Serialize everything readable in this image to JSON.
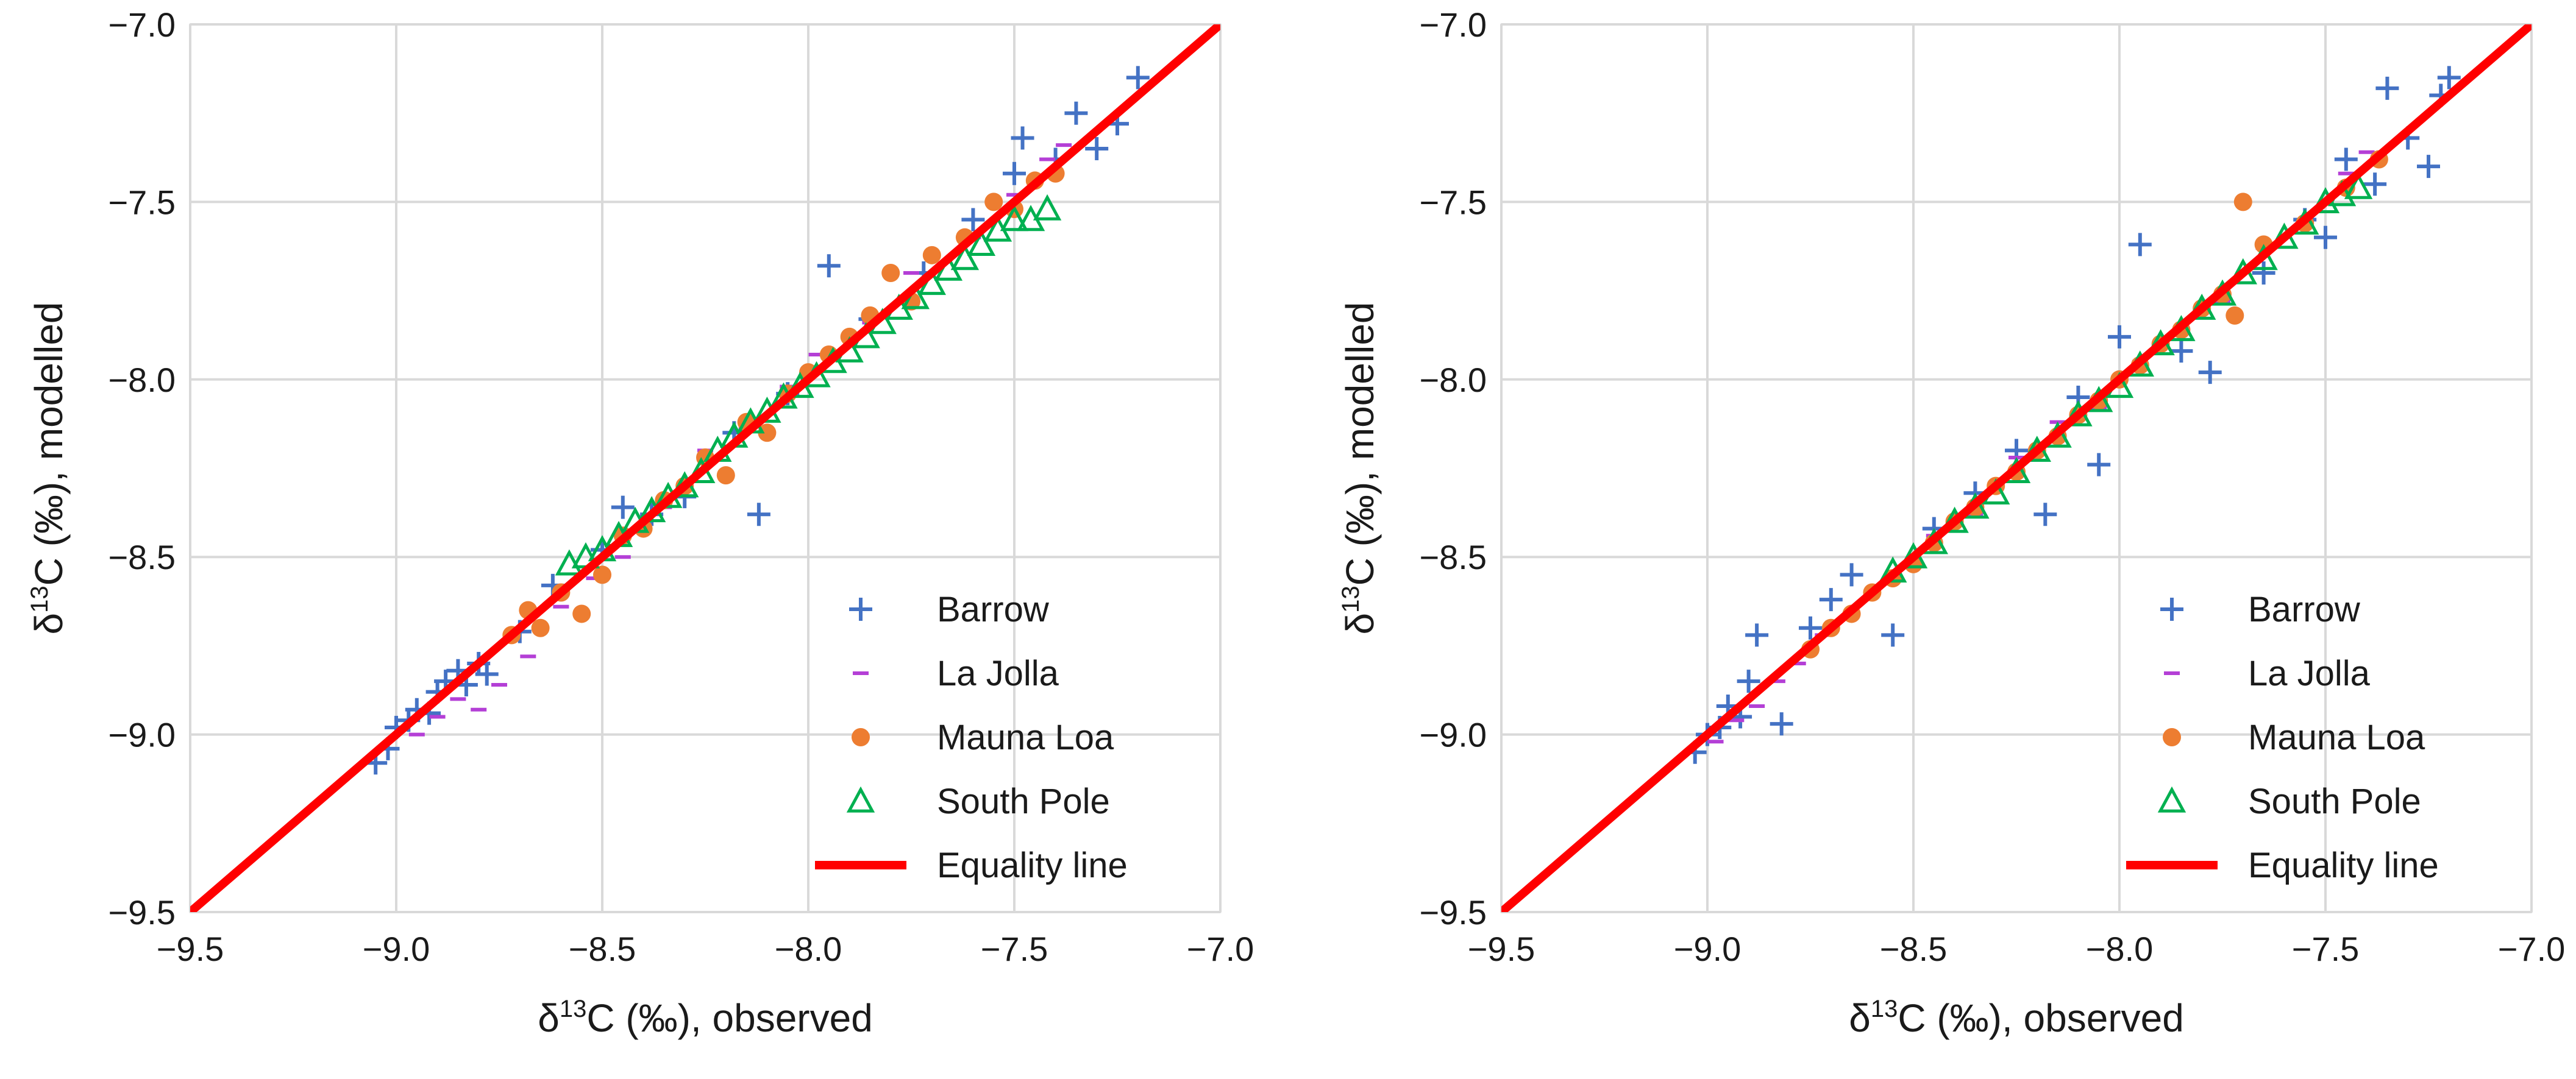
{
  "chart_data": [
    {
      "type": "scatter",
      "title": "",
      "xlabel": {
        "delta": "δ",
        "sup": "13",
        "rest": "C (‰), observed"
      },
      "ylabel": {
        "delta": "δ",
        "sup": "13",
        "rest": "C (‰), modelled"
      },
      "xlim": [
        -9.5,
        -7.0
      ],
      "ylim": [
        -9.5,
        -7.0
      ],
      "xticks": [
        "−9.5",
        "−9.0",
        "−8.5",
        "−8.0",
        "−7.5",
        "−7.0"
      ],
      "yticks": [
        "−9.5",
        "−9.0",
        "−8.5",
        "−8.0",
        "−7.5",
        "−7.0"
      ],
      "grid": true,
      "legend_position": "bottom-right",
      "series": [
        {
          "name": "Barrow",
          "marker": "plus",
          "color": "#4472C4",
          "x": [
            -9.05,
            -9.02,
            -9.0,
            -8.97,
            -8.95,
            -8.92,
            -8.9,
            -8.88,
            -8.85,
            -8.83,
            -8.8,
            -8.78,
            -8.7,
            -8.62,
            -8.5,
            -8.45,
            -8.38,
            -8.3,
            -8.18,
            -8.12,
            -8.05,
            -7.95,
            -7.85,
            -7.72,
            -7.6,
            -7.5,
            -7.48,
            -7.4,
            -7.35,
            -7.3,
            -7.25,
            -7.2
          ],
          "y": [
            -9.08,
            -9.04,
            -8.98,
            -8.96,
            -8.93,
            -8.94,
            -8.88,
            -8.85,
            -8.82,
            -8.86,
            -8.8,
            -8.83,
            -8.71,
            -8.58,
            -8.48,
            -8.36,
            -8.38,
            -8.33,
            -8.15,
            -8.38,
            -8.04,
            -7.68,
            -7.83,
            -7.7,
            -7.55,
            -7.42,
            -7.32,
            -7.38,
            -7.25,
            -7.35,
            -7.28,
            -7.15
          ]
        },
        {
          "name": "La Jolla",
          "marker": "dash",
          "color": "#B43FD6",
          "x": [
            -8.95,
            -8.9,
            -8.85,
            -8.8,
            -8.75,
            -8.68,
            -8.6,
            -8.52,
            -8.45,
            -8.35,
            -8.25,
            -8.15,
            -8.05,
            -7.98,
            -7.85,
            -7.75,
            -7.6,
            -7.5,
            -7.42,
            -7.38
          ],
          "y": [
            -9.0,
            -8.95,
            -8.9,
            -8.93,
            -8.86,
            -8.78,
            -8.64,
            -8.56,
            -8.5,
            -8.36,
            -8.2,
            -8.14,
            -8.02,
            -7.93,
            -7.84,
            -7.7,
            -7.6,
            -7.48,
            -7.38,
            -7.34
          ]
        },
        {
          "name": "Mauna Loa",
          "marker": "circle",
          "color": "#ED7D31",
          "x": [
            -8.72,
            -8.68,
            -8.65,
            -8.6,
            -8.55,
            -8.5,
            -8.45,
            -8.4,
            -8.35,
            -8.3,
            -8.25,
            -8.2,
            -8.15,
            -8.1,
            -8.05,
            -8.0,
            -7.95,
            -7.9,
            -7.85,
            -7.8,
            -7.75,
            -7.7,
            -7.62,
            -7.55,
            -7.5,
            -7.45,
            -7.4
          ],
          "y": [
            -8.72,
            -8.65,
            -8.7,
            -8.6,
            -8.66,
            -8.55,
            -8.44,
            -8.42,
            -8.34,
            -8.3,
            -8.22,
            -8.27,
            -8.12,
            -8.15,
            -8.04,
            -7.98,
            -7.93,
            -7.88,
            -7.82,
            -7.7,
            -7.78,
            -7.65,
            -7.6,
            -7.5,
            -7.52,
            -7.44,
            -7.42
          ]
        },
        {
          "name": "South Pole",
          "marker": "triangle",
          "color": "#00B050",
          "x": [
            -8.58,
            -8.54,
            -8.5,
            -8.46,
            -8.42,
            -8.38,
            -8.34,
            -8.3,
            -8.26,
            -8.22,
            -8.18,
            -8.14,
            -8.1,
            -8.06,
            -8.02,
            -7.98,
            -7.94,
            -7.9,
            -7.86,
            -7.82,
            -7.78,
            -7.74,
            -7.7,
            -7.66,
            -7.62,
            -7.58,
            -7.54,
            -7.5,
            -7.46,
            -7.42
          ],
          "y": [
            -8.52,
            -8.5,
            -8.48,
            -8.44,
            -8.4,
            -8.37,
            -8.33,
            -8.3,
            -8.26,
            -8.2,
            -8.16,
            -8.12,
            -8.09,
            -8.05,
            -8.02,
            -7.99,
            -7.95,
            -7.92,
            -7.88,
            -7.84,
            -7.8,
            -7.77,
            -7.73,
            -7.69,
            -7.66,
            -7.62,
            -7.58,
            -7.55,
            -7.55,
            -7.52
          ]
        },
        {
          "name": "Equality line",
          "marker": "line",
          "color": "#FF0000",
          "x": [
            -9.5,
            -7.0
          ],
          "y": [
            -9.5,
            -7.0
          ]
        }
      ]
    },
    {
      "type": "scatter",
      "title": "",
      "xlabel": {
        "delta": "δ",
        "sup": "13",
        "rest": "C (‰), observed"
      },
      "ylabel": {
        "delta": "δ",
        "sup": "13",
        "rest": "C (‰), modelled"
      },
      "xlim": [
        -9.5,
        -7.0
      ],
      "ylim": [
        -9.5,
        -7.0
      ],
      "xticks": [
        "−9.5",
        "−9.0",
        "−8.5",
        "−8.0",
        "−7.5",
        "−7.0"
      ],
      "yticks": [
        "−9.5",
        "−9.0",
        "−8.5",
        "−8.0",
        "−7.5",
        "−7.0"
      ],
      "grid": true,
      "legend_position": "bottom-right",
      "series": [
        {
          "name": "Barrow",
          "marker": "plus",
          "color": "#4472C4",
          "x": [
            -9.03,
            -9.0,
            -8.97,
            -8.95,
            -8.92,
            -8.9,
            -8.88,
            -8.82,
            -8.75,
            -8.7,
            -8.65,
            -8.55,
            -8.45,
            -8.35,
            -8.25,
            -8.18,
            -8.1,
            -8.05,
            -8.0,
            -7.95,
            -7.85,
            -7.78,
            -7.65,
            -7.55,
            -7.5,
            -7.45,
            -7.38,
            -7.3,
            -7.25,
            -7.22,
            -7.2,
            -7.35
          ],
          "y": [
            -9.05,
            -9.0,
            -8.98,
            -8.92,
            -8.95,
            -8.85,
            -8.72,
            -8.97,
            -8.7,
            -8.62,
            -8.55,
            -8.72,
            -8.42,
            -8.32,
            -8.2,
            -8.38,
            -8.05,
            -8.24,
            -7.88,
            -7.62,
            -7.92,
            -7.98,
            -7.7,
            -7.55,
            -7.6,
            -7.38,
            -7.45,
            -7.32,
            -7.4,
            -7.2,
            -7.15,
            -7.18
          ]
        },
        {
          "name": "La Jolla",
          "marker": "dash",
          "color": "#B43FD6",
          "x": [
            -8.98,
            -8.93,
            -8.88,
            -8.83,
            -8.78,
            -8.72,
            -8.65,
            -8.55,
            -8.45,
            -8.35,
            -8.25,
            -8.15,
            -8.05,
            -7.95,
            -7.85,
            -7.75,
            -7.65,
            -7.55,
            -7.45,
            -7.4
          ],
          "y": [
            -9.02,
            -8.96,
            -8.92,
            -8.85,
            -8.8,
            -8.72,
            -8.66,
            -8.55,
            -8.44,
            -8.38,
            -8.22,
            -8.12,
            -8.08,
            -7.95,
            -7.86,
            -7.78,
            -7.63,
            -7.56,
            -7.42,
            -7.36
          ]
        },
        {
          "name": "Mauna Loa",
          "marker": "circle",
          "color": "#ED7D31",
          "x": [
            -8.75,
            -8.7,
            -8.65,
            -8.6,
            -8.55,
            -8.5,
            -8.45,
            -8.4,
            -8.35,
            -8.3,
            -8.25,
            -8.2,
            -8.15,
            -8.1,
            -8.05,
            -8.0,
            -7.95,
            -7.9,
            -7.85,
            -7.8,
            -7.75,
            -7.72,
            -7.7,
            -7.65,
            -7.55,
            -7.45,
            -7.37
          ],
          "y": [
            -8.76,
            -8.7,
            -8.66,
            -8.6,
            -8.56,
            -8.52,
            -8.46,
            -8.4,
            -8.36,
            -8.3,
            -8.26,
            -8.2,
            -8.16,
            -8.1,
            -8.06,
            -8.0,
            -7.96,
            -7.9,
            -7.86,
            -7.8,
            -7.76,
            -7.82,
            -7.5,
            -7.62,
            -7.56,
            -7.46,
            -7.38
          ]
        },
        {
          "name": "South Pole",
          "marker": "triangle",
          "color": "#00B050",
          "x": [
            -8.55,
            -8.5,
            -8.45,
            -8.4,
            -8.35,
            -8.3,
            -8.25,
            -8.2,
            -8.15,
            -8.1,
            -8.05,
            -8.0,
            -7.95,
            -7.9,
            -7.85,
            -7.8,
            -7.75,
            -7.7,
            -7.65,
            -7.6,
            -7.55,
            -7.5,
            -7.46,
            -7.42
          ],
          "y": [
            -8.54,
            -8.5,
            -8.46,
            -8.4,
            -8.36,
            -8.32,
            -8.26,
            -8.2,
            -8.16,
            -8.1,
            -8.06,
            -8.02,
            -7.96,
            -7.9,
            -7.86,
            -7.8,
            -7.76,
            -7.7,
            -7.66,
            -7.6,
            -7.56,
            -7.5,
            -7.48,
            -7.46
          ]
        },
        {
          "name": "Equality line",
          "marker": "line",
          "color": "#FF0000",
          "x": [
            -9.5,
            -7.0
          ],
          "y": [
            -9.5,
            -7.0
          ]
        }
      ]
    }
  ]
}
